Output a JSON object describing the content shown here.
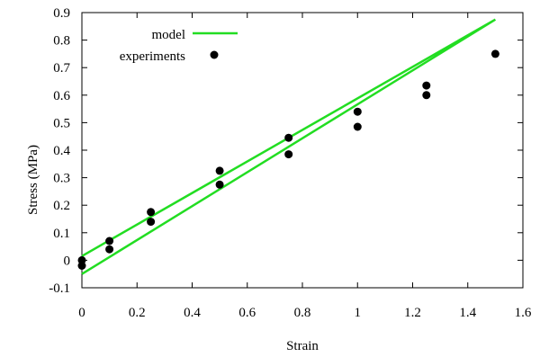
{
  "chart_data": {
    "type": "scatter",
    "xlabel": "Strain",
    "ylabel": "Stress (MPa)",
    "xlim": [
      0,
      1.6
    ],
    "ylim": [
      -0.1,
      0.9
    ],
    "xticks": [
      "0",
      "0.2",
      "0.4",
      "0.6",
      "0.8",
      "1",
      "1.2",
      "1.4",
      "1.6"
    ],
    "yticks": [
      "-0.1",
      "0",
      "0.1",
      "0.2",
      "0.3",
      "0.4",
      "0.5",
      "0.6",
      "0.7",
      "0.8",
      "0.9"
    ],
    "xtick_values": [
      0,
      0.2,
      0.4,
      0.6,
      0.8,
      1.0,
      1.2,
      1.4,
      1.6
    ],
    "ytick_values": [
      -0.1,
      0,
      0.1,
      0.2,
      0.3,
      0.4,
      0.5,
      0.6,
      0.7,
      0.8,
      0.9
    ],
    "grid": false,
    "legend_position": "top-left",
    "series": [
      {
        "name": "model",
        "kind": "line",
        "color": "#22dd22",
        "x": [
          0,
          1.5,
          0
        ],
        "y": [
          0.015,
          0.875,
          -0.05
        ]
      },
      {
        "name": "experiments",
        "kind": "points",
        "color": "#000000",
        "x": [
          0,
          0,
          0.1,
          0.1,
          0.25,
          0.25,
          0.5,
          0.5,
          0.75,
          0.75,
          1.0,
          1.0,
          1.25,
          1.25,
          1.5
        ],
        "y": [
          0.0,
          -0.02,
          0.07,
          0.04,
          0.175,
          0.14,
          0.325,
          0.275,
          0.445,
          0.385,
          0.54,
          0.485,
          0.635,
          0.6,
          0.75
        ]
      }
    ]
  }
}
